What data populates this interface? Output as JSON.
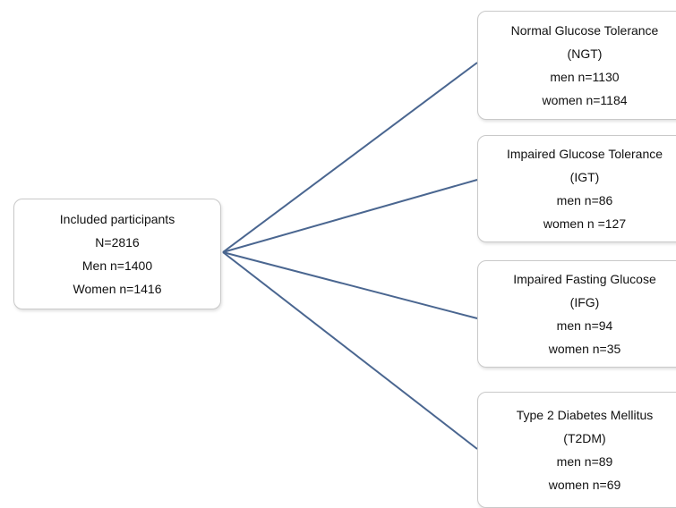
{
  "root": {
    "title": "Included participants",
    "total": "N=2816",
    "men": "Men n=1400",
    "women": "Women n=1416"
  },
  "groups": [
    {
      "name": "Normal Glucose Tolerance",
      "abbr": "(NGT)",
      "men": "men n=1130",
      "women": "women n=1184"
    },
    {
      "name": "Impaired Glucose Tolerance",
      "abbr": "(IGT)",
      "men": "men n=86",
      "women": "women n =127"
    },
    {
      "name": "Impaired Fasting Glucose",
      "abbr": "(IFG)",
      "men": "men n=94",
      "women": "women n=35"
    },
    {
      "name": "Type 2 Diabetes Mellitus",
      "abbr": "(T2DM)",
      "men": "men n=89",
      "women": "women n=69"
    }
  ],
  "colors": {
    "connector": "#4a6690",
    "box_border": "#c9c9c9"
  }
}
